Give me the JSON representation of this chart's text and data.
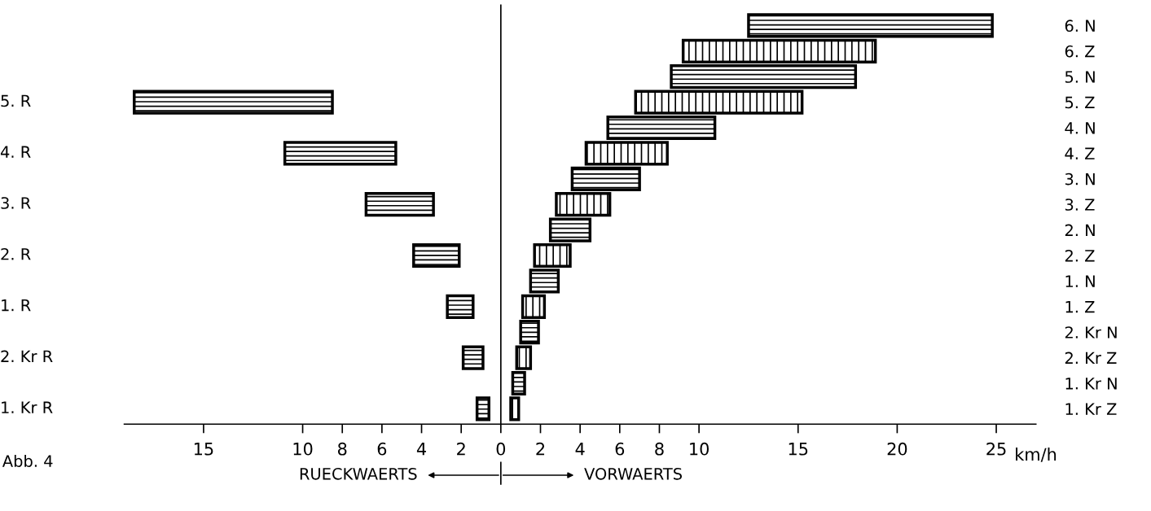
{
  "chart_data": {
    "type": "bar",
    "orientation": "horizontal",
    "categories": [
      "6. N",
      "6. Z",
      "5. N",
      "5. Z",
      "4. N",
      "4. Z",
      "3. N",
      "3. Z",
      "2. N",
      "2. Z",
      "1. N",
      "1. Z",
      "2. Kr N",
      "2. Kr Z",
      "1. Kr N",
      "1. Kr Z"
    ],
    "series": [
      {
        "color": "#000000",
        "base": [
          null,
          null,
          null,
          -18.5,
          null,
          -10.9,
          null,
          -6.8,
          null,
          -4.4,
          null,
          -2.7,
          null,
          -1.9,
          null,
          -1.2
        ],
        "values": [
          null,
          null,
          null,
          10.0,
          null,
          5.6,
          null,
          3.4,
          null,
          2.3,
          null,
          1.3,
          null,
          1.0,
          null,
          0.6
        ]
      },
      {
        "color": "#000000",
        "base": [
          12.5,
          null,
          8.6,
          null,
          5.4,
          null,
          3.6,
          null,
          2.5,
          null,
          1.5,
          null,
          1.0,
          null,
          0.6,
          null
        ],
        "values": [
          12.3,
          null,
          9.3,
          null,
          5.4,
          null,
          3.4,
          null,
          2.0,
          null,
          1.4,
          null,
          0.9,
          null,
          0.6,
          null
        ]
      },
      {
        "color": "#000000",
        "base": [
          null,
          9.2,
          null,
          6.8,
          null,
          4.3,
          null,
          2.8,
          null,
          1.7,
          null,
          1.1,
          null,
          0.8,
          null,
          0.5
        ],
        "values": [
          null,
          9.7,
          null,
          8.4,
          null,
          4.1,
          null,
          2.7,
          null,
          1.8,
          null,
          1.1,
          null,
          0.7,
          null,
          0.4
        ]
      }
    ],
    "xlim": [
      -19,
      27
    ],
    "xticks": [
      {
        "value": -15,
        "label": "15"
      },
      {
        "value": -10,
        "label": "10"
      },
      {
        "value": -8,
        "label": "8"
      },
      {
        "value": -6,
        "label": "6"
      },
      {
        "value": -4,
        "label": "4"
      },
      {
        "value": -2,
        "label": "2"
      },
      0,
      2,
      4,
      6,
      8,
      10,
      15,
      20,
      25
    ],
    "xlabel": "km/h",
    "ref_lines": [
      {
        "axis": "x",
        "value": 0
      }
    ],
    "annotations": [
      "Abb. 4",
      "RUECKWAERTS",
      "VORWAERTS",
      "5. R",
      "4. R",
      "3. R",
      "2. R",
      "1. R",
      "2. Kr R",
      "1. Kr R"
    ],
    "legend": false,
    "grid": false
  }
}
